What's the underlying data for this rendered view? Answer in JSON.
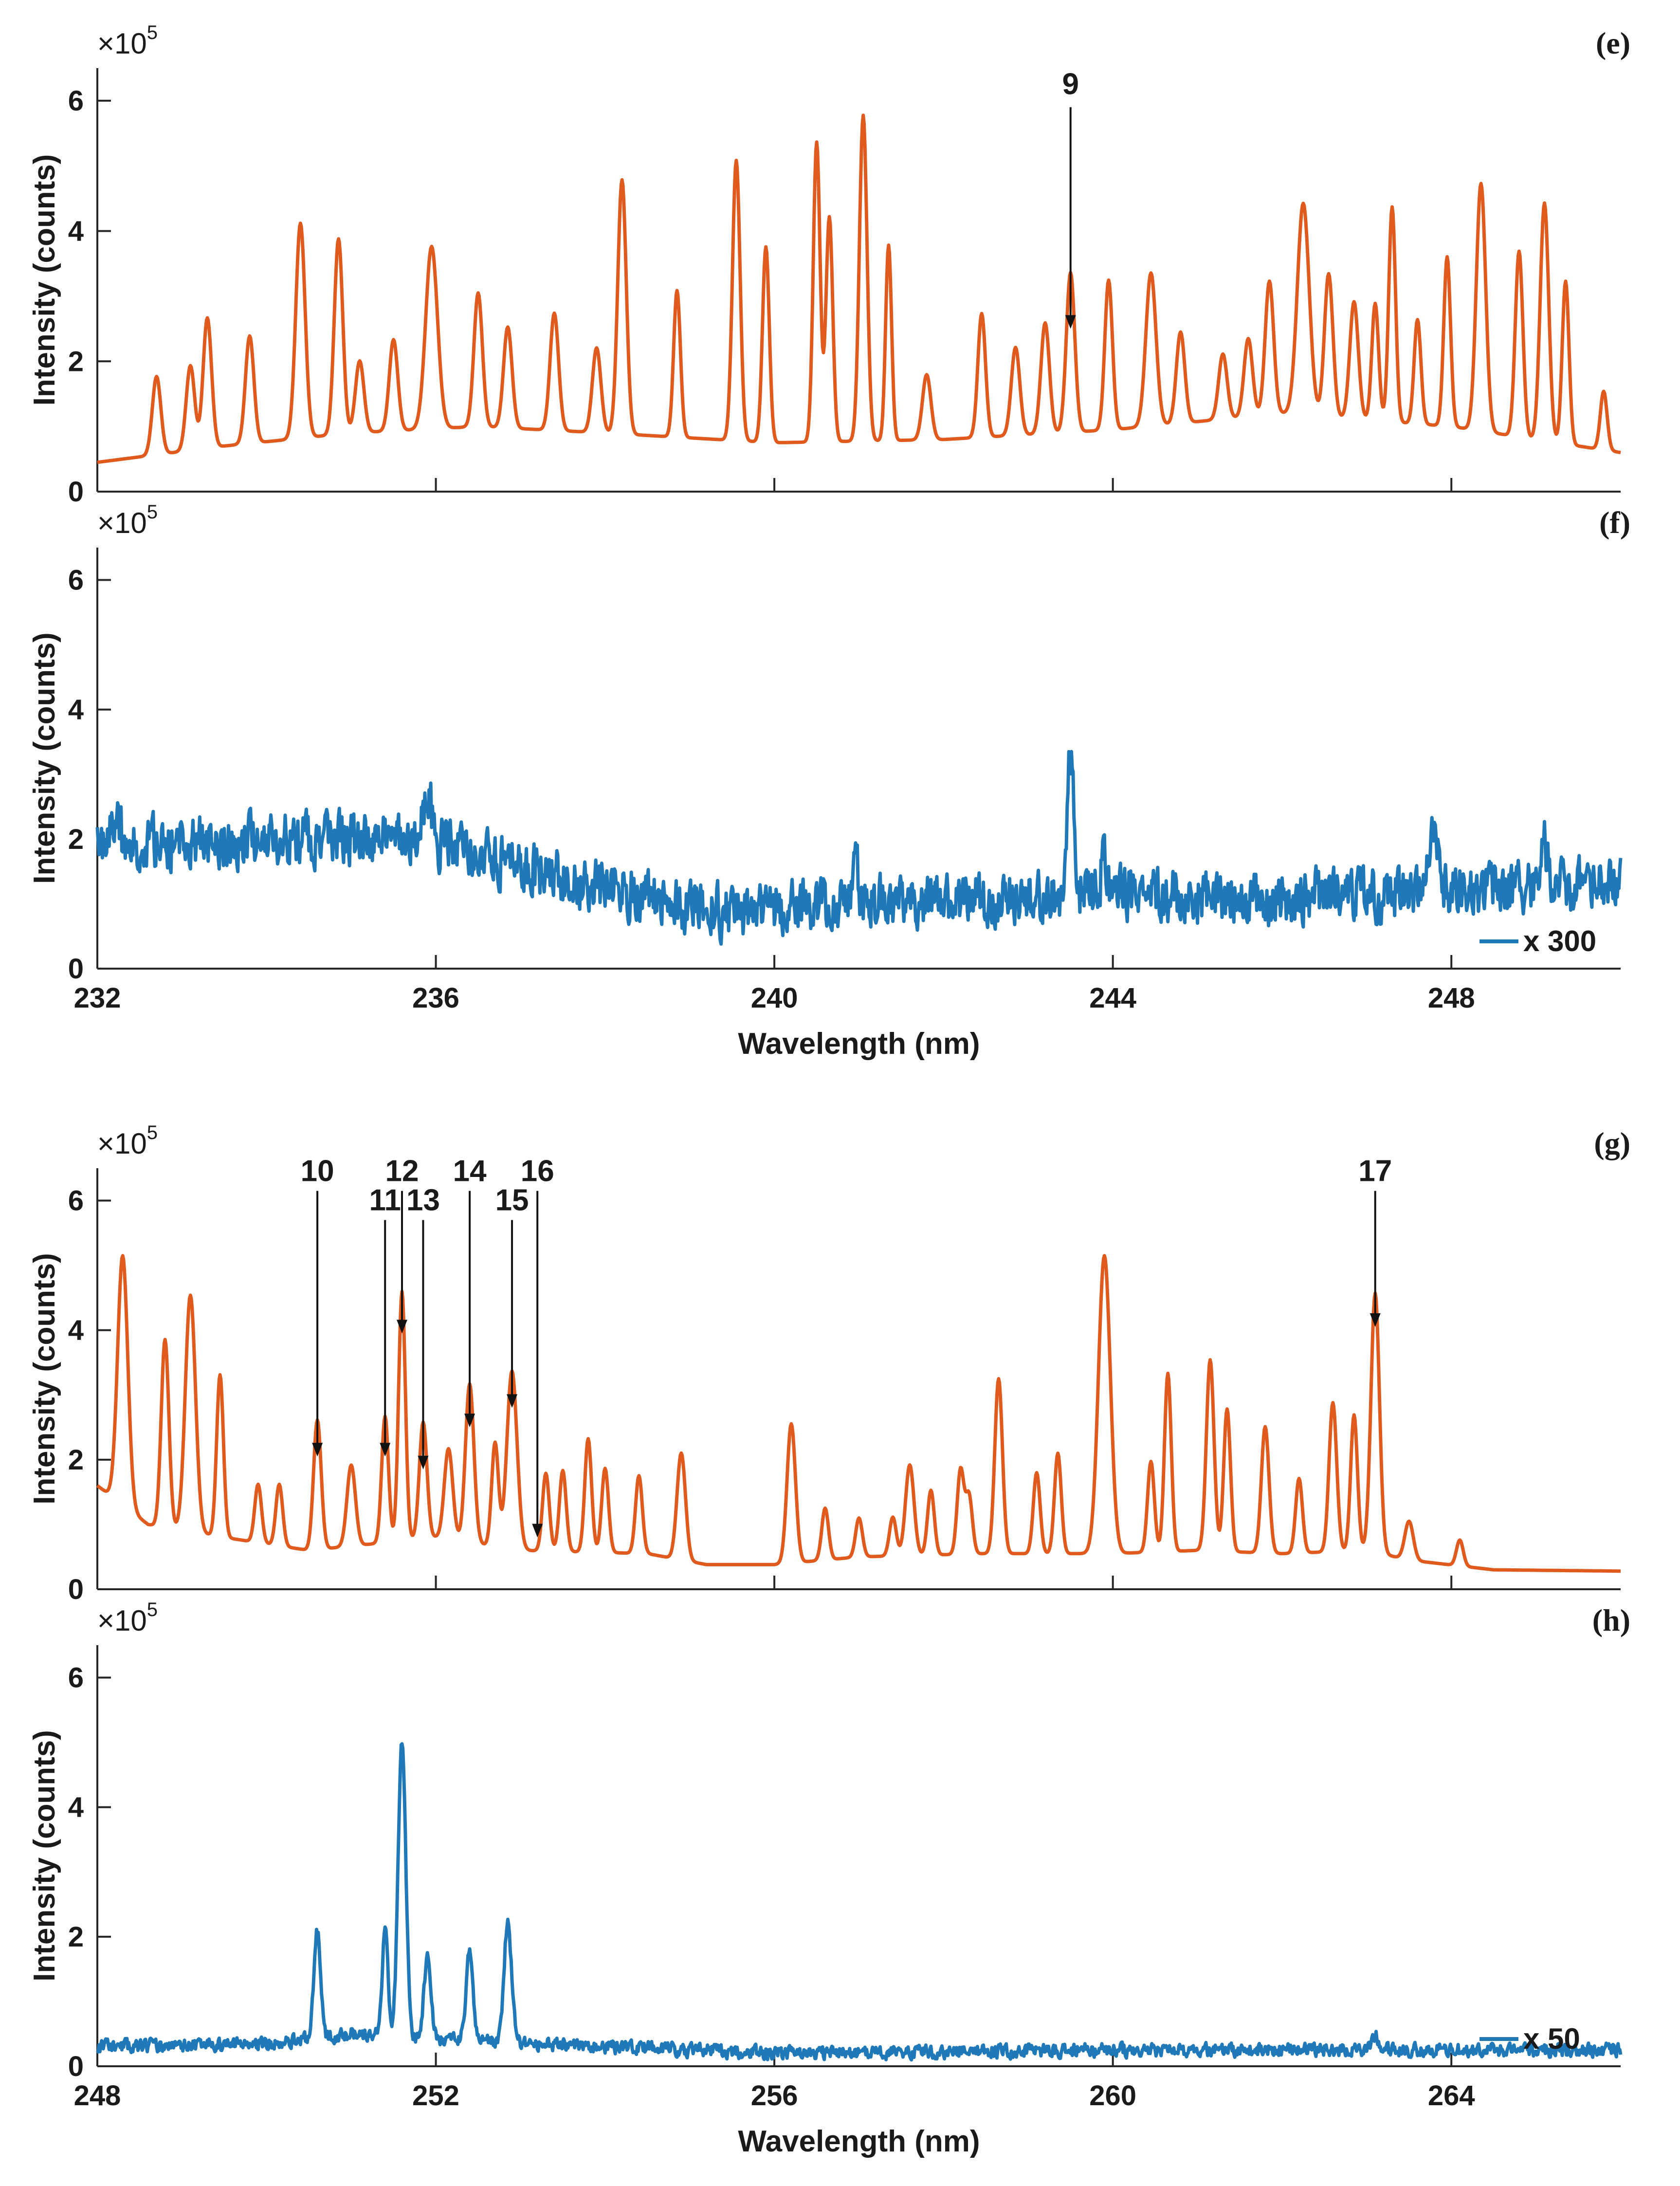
{
  "chart_data": [
    {
      "id": "e",
      "type": "line",
      "panel_label": "(e)",
      "ylabel": "Intensity (counts)",
      "xlabel": "",
      "y_multiplier": "×10",
      "y_exponent": "5",
      "xlim": [
        232,
        250
      ],
      "ylim": [
        0,
        6.5
      ],
      "xticks": [
        232,
        236,
        240,
        244,
        248
      ],
      "xtick_labels": [],
      "yticks": [
        0,
        2,
        4,
        6
      ],
      "ytick_labels": [
        "0",
        "2",
        "4",
        "6"
      ],
      "color": "#e05a1e",
      "baseline": [
        [
          232.0,
          0.45
        ],
        [
          233.5,
          0.7
        ],
        [
          235.0,
          0.9
        ],
        [
          236.5,
          1.0
        ],
        [
          238.0,
          0.9
        ],
        [
          240.0,
          0.75
        ],
        [
          242.0,
          0.8
        ],
        [
          244.0,
          0.95
        ],
        [
          246.0,
          1.2
        ],
        [
          248.0,
          1.0
        ],
        [
          250.0,
          0.6
        ]
      ],
      "peaks": [
        {
          "x": 232.7,
          "y": 1.2,
          "w": 0.05
        },
        {
          "x": 233.1,
          "y": 1.3,
          "w": 0.05
        },
        {
          "x": 233.3,
          "y": 2.0,
          "w": 0.05
        },
        {
          "x": 233.8,
          "y": 1.65,
          "w": 0.05
        },
        {
          "x": 234.4,
          "y": 3.3,
          "w": 0.055
        },
        {
          "x": 234.85,
          "y": 3.0,
          "w": 0.05
        },
        {
          "x": 235.1,
          "y": 1.1,
          "w": 0.05
        },
        {
          "x": 235.5,
          "y": 1.4,
          "w": 0.05
        },
        {
          "x": 235.95,
          "y": 2.8,
          "w": 0.07
        },
        {
          "x": 236.5,
          "y": 2.05,
          "w": 0.05
        },
        {
          "x": 236.85,
          "y": 1.55,
          "w": 0.05
        },
        {
          "x": 237.4,
          "y": 1.8,
          "w": 0.05
        },
        {
          "x": 237.9,
          "y": 1.3,
          "w": 0.05
        },
        {
          "x": 238.2,
          "y": 3.9,
          "w": 0.05
        },
        {
          "x": 238.85,
          "y": 2.25,
          "w": 0.04
        },
        {
          "x": 239.55,
          "y": 4.3,
          "w": 0.045
        },
        {
          "x": 239.9,
          "y": 3.0,
          "w": 0.04
        },
        {
          "x": 240.5,
          "y": 4.6,
          "w": 0.04
        },
        {
          "x": 240.65,
          "y": 3.45,
          "w": 0.04
        },
        {
          "x": 241.05,
          "y": 5.0,
          "w": 0.045
        },
        {
          "x": 241.35,
          "y": 3.0,
          "w": 0.035
        },
        {
          "x": 241.8,
          "y": 1.0,
          "w": 0.05
        },
        {
          "x": 242.45,
          "y": 1.9,
          "w": 0.045
        },
        {
          "x": 242.85,
          "y": 1.35,
          "w": 0.05
        },
        {
          "x": 243.2,
          "y": 1.7,
          "w": 0.05
        },
        {
          "x": 243.5,
          "y": 2.45,
          "w": 0.05
        },
        {
          "x": 243.95,
          "y": 2.3,
          "w": 0.045
        },
        {
          "x": 244.45,
          "y": 2.35,
          "w": 0.06
        },
        {
          "x": 244.8,
          "y": 1.4,
          "w": 0.05
        },
        {
          "x": 245.3,
          "y": 1.0,
          "w": 0.05
        },
        {
          "x": 245.6,
          "y": 1.2,
          "w": 0.05
        },
        {
          "x": 245.85,
          "y": 2.05,
          "w": 0.05
        },
        {
          "x": 246.25,
          "y": 3.25,
          "w": 0.07
        },
        {
          "x": 246.55,
          "y": 2.2,
          "w": 0.05
        },
        {
          "x": 246.85,
          "y": 1.8,
          "w": 0.05
        },
        {
          "x": 247.1,
          "y": 1.8,
          "w": 0.04
        },
        {
          "x": 247.3,
          "y": 3.3,
          "w": 0.04
        },
        {
          "x": 247.6,
          "y": 1.6,
          "w": 0.04
        },
        {
          "x": 247.95,
          "y": 2.6,
          "w": 0.04
        },
        {
          "x": 248.35,
          "y": 3.8,
          "w": 0.055
        },
        {
          "x": 248.8,
          "y": 2.85,
          "w": 0.045
        },
        {
          "x": 249.1,
          "y": 3.65,
          "w": 0.05
        },
        {
          "x": 249.35,
          "y": 2.5,
          "w": 0.04
        },
        {
          "x": 249.8,
          "y": 0.9,
          "w": 0.04
        }
      ],
      "noise": 0,
      "seed": 1,
      "annotations": [
        {
          "label": "9",
          "x": 243.5,
          "y_tip": 2.5,
          "y_tail": 5.9,
          "text_y": 6.1
        }
      ],
      "legend": null
    },
    {
      "id": "f",
      "type": "line",
      "panel_label": "(f)",
      "ylabel": "Intensity (counts)",
      "xlabel": "Wavelength (nm)",
      "y_multiplier": "×10",
      "y_exponent": "5",
      "xlim": [
        232,
        250
      ],
      "ylim": [
        0,
        6.5
      ],
      "xticks": [
        232,
        236,
        240,
        244,
        248
      ],
      "xtick_labels": [
        "232",
        "236",
        "240",
        "244",
        "248"
      ],
      "yticks": [
        0,
        2,
        4,
        6
      ],
      "ytick_labels": [
        "0",
        "2",
        "4",
        "6"
      ],
      "color": "#1f78b8",
      "baseline": [
        [
          232.0,
          1.9
        ],
        [
          234.0,
          2.0
        ],
        [
          235.9,
          2.0
        ],
        [
          236.6,
          1.7
        ],
        [
          237.5,
          1.4
        ],
        [
          238.5,
          1.1
        ],
        [
          239.5,
          0.85
        ],
        [
          240.5,
          1.0
        ],
        [
          242.0,
          1.05
        ],
        [
          243.0,
          1.1
        ],
        [
          244.0,
          1.2
        ],
        [
          245.0,
          1.1
        ],
        [
          246.0,
          1.1
        ],
        [
          248.0,
          1.2
        ],
        [
          250.0,
          1.3
        ]
      ],
      "peaks": [
        {
          "x": 243.5,
          "y": 2.2,
          "w": 0.04
        },
        {
          "x": 235.9,
          "y": 0.7,
          "w": 0.05
        },
        {
          "x": 247.8,
          "y": 1.0,
          "w": 0.05
        },
        {
          "x": 232.2,
          "y": 0.5,
          "w": 0.05
        },
        {
          "x": 240.95,
          "y": 0.6,
          "w": 0.04
        },
        {
          "x": 249.1,
          "y": 0.7,
          "w": 0.04
        },
        {
          "x": 243.9,
          "y": 0.5,
          "w": 0.04
        }
      ],
      "noise": 0.55,
      "seed": 7,
      "annotations": [],
      "legend": {
        "label": "x 300"
      }
    },
    {
      "id": "g",
      "type": "line",
      "panel_label": "(g)",
      "ylabel": "Intensity (counts)",
      "xlabel": "",
      "y_multiplier": "×10",
      "y_exponent": "5",
      "xlim": [
        248,
        266
      ],
      "ylim": [
        0,
        6.5
      ],
      "xticks": [
        248,
        252,
        256,
        260,
        264
      ],
      "xtick_labels": [],
      "yticks": [
        0,
        2,
        4,
        6
      ],
      "ytick_labels": [
        "0",
        "2",
        "4",
        "6"
      ],
      "color": "#e05a1e",
      "baseline": [
        [
          248.0,
          1.6
        ],
        [
          248.6,
          1.0
        ],
        [
          249.5,
          0.8
        ],
        [
          250.5,
          0.6
        ],
        [
          252.0,
          0.8
        ],
        [
          253.0,
          0.6
        ],
        [
          254.5,
          0.55
        ],
        [
          255.2,
          0.38
        ],
        [
          256.0,
          0.38
        ],
        [
          257.0,
          0.5
        ],
        [
          258.5,
          0.55
        ],
        [
          260.0,
          0.55
        ],
        [
          261.0,
          0.6
        ],
        [
          262.0,
          0.55
        ],
        [
          263.0,
          0.6
        ],
        [
          263.5,
          0.45
        ],
        [
          264.5,
          0.3
        ],
        [
          266.0,
          0.28
        ]
      ],
      "peaks": [
        {
          "x": 248.3,
          "y": 3.85,
          "w": 0.06
        },
        {
          "x": 248.8,
          "y": 2.9,
          "w": 0.045
        },
        {
          "x": 249.1,
          "y": 3.65,
          "w": 0.06
        },
        {
          "x": 249.45,
          "y": 2.5,
          "w": 0.04
        },
        {
          "x": 249.9,
          "y": 0.9,
          "w": 0.04
        },
        {
          "x": 250.15,
          "y": 0.95,
          "w": 0.04
        },
        {
          "x": 250.6,
          "y": 2.0,
          "w": 0.045
        },
        {
          "x": 251.0,
          "y": 1.25,
          "w": 0.05
        },
        {
          "x": 251.4,
          "y": 1.95,
          "w": 0.04
        },
        {
          "x": 251.6,
          "y": 3.85,
          "w": 0.04
        },
        {
          "x": 251.85,
          "y": 1.8,
          "w": 0.045
        },
        {
          "x": 252.15,
          "y": 1.4,
          "w": 0.05
        },
        {
          "x": 252.4,
          "y": 2.45,
          "w": 0.05
        },
        {
          "x": 252.7,
          "y": 1.6,
          "w": 0.04
        },
        {
          "x": 252.9,
          "y": 2.75,
          "w": 0.06
        },
        {
          "x": 253.3,
          "y": 1.2,
          "w": 0.04
        },
        {
          "x": 253.5,
          "y": 1.25,
          "w": 0.04
        },
        {
          "x": 253.8,
          "y": 1.75,
          "w": 0.04
        },
        {
          "x": 254.0,
          "y": 1.3,
          "w": 0.04
        },
        {
          "x": 254.4,
          "y": 1.2,
          "w": 0.04
        },
        {
          "x": 254.9,
          "y": 1.65,
          "w": 0.05
        },
        {
          "x": 256.2,
          "y": 2.15,
          "w": 0.05
        },
        {
          "x": 256.6,
          "y": 0.8,
          "w": 0.04
        },
        {
          "x": 257.0,
          "y": 0.6,
          "w": 0.04
        },
        {
          "x": 257.4,
          "y": 0.6,
          "w": 0.04
        },
        {
          "x": 257.6,
          "y": 1.4,
          "w": 0.05
        },
        {
          "x": 257.85,
          "y": 1.0,
          "w": 0.04
        },
        {
          "x": 258.2,
          "y": 1.3,
          "w": 0.04
        },
        {
          "x": 258.3,
          "y": 0.9,
          "w": 0.04
        },
        {
          "x": 258.65,
          "y": 2.7,
          "w": 0.045
        },
        {
          "x": 259.1,
          "y": 1.25,
          "w": 0.04
        },
        {
          "x": 259.35,
          "y": 1.55,
          "w": 0.04
        },
        {
          "x": 259.9,
          "y": 4.6,
          "w": 0.07
        },
        {
          "x": 260.45,
          "y": 1.4,
          "w": 0.04
        },
        {
          "x": 260.65,
          "y": 2.75,
          "w": 0.04
        },
        {
          "x": 261.15,
          "y": 2.95,
          "w": 0.045
        },
        {
          "x": 261.35,
          "y": 2.2,
          "w": 0.04
        },
        {
          "x": 261.8,
          "y": 1.95,
          "w": 0.045
        },
        {
          "x": 262.2,
          "y": 1.15,
          "w": 0.04
        },
        {
          "x": 262.6,
          "y": 2.3,
          "w": 0.045
        },
        {
          "x": 262.85,
          "y": 2.1,
          "w": 0.04
        },
        {
          "x": 263.1,
          "y": 4.0,
          "w": 0.05
        },
        {
          "x": 263.5,
          "y": 0.6,
          "w": 0.05
        },
        {
          "x": 264.1,
          "y": 0.4,
          "w": 0.04
        }
      ],
      "noise": 0,
      "seed": 3,
      "annotations": [
        {
          "label": "10",
          "x": 250.6,
          "y_tip": 2.05,
          "y_tail": 6.15,
          "text_y": 6.3
        },
        {
          "label": "11",
          "x": 251.4,
          "y_tip": 2.05,
          "y_tail": 5.7,
          "text_y": 5.85
        },
        {
          "label": "12",
          "x": 251.6,
          "y_tip": 3.95,
          "y_tail": 6.15,
          "text_y": 6.3
        },
        {
          "label": "13",
          "x": 251.85,
          "y_tip": 1.85,
          "y_tail": 5.7,
          "text_y": 5.85
        },
        {
          "label": "14",
          "x": 252.4,
          "y_tip": 2.5,
          "y_tail": 6.15,
          "text_y": 6.3
        },
        {
          "label": "15",
          "x": 252.9,
          "y_tip": 2.8,
          "y_tail": 5.7,
          "text_y": 5.85
        },
        {
          "label": "16",
          "x": 253.2,
          "y_tip": 0.8,
          "y_tail": 6.15,
          "text_y": 6.3
        },
        {
          "label": "17",
          "x": 263.1,
          "y_tip": 4.05,
          "y_tail": 6.15,
          "text_y": 6.3
        }
      ],
      "legend": null
    },
    {
      "id": "h",
      "type": "line",
      "panel_label": "(h)",
      "ylabel": "Intensity (counts)",
      "xlabel": "Wavelength (nm)",
      "y_multiplier": "×10",
      "y_exponent": "5",
      "xlim": [
        248,
        266
      ],
      "ylim": [
        0,
        6.5
      ],
      "xticks": [
        248,
        252,
        256,
        260,
        264
      ],
      "xtick_labels": [
        "248",
        "252",
        "256",
        "260",
        "264"
      ],
      "yticks": [
        0,
        2,
        4,
        6
      ],
      "ytick_labels": [
        "0",
        "2",
        "4",
        "6"
      ],
      "color": "#1f78b8",
      "baseline": [
        [
          248.0,
          0.3
        ],
        [
          250.0,
          0.35
        ],
        [
          251.0,
          0.5
        ],
        [
          253.0,
          0.35
        ],
        [
          256.0,
          0.2
        ],
        [
          260.0,
          0.25
        ],
        [
          264.0,
          0.25
        ],
        [
          266.0,
          0.25
        ]
      ],
      "peaks": [
        {
          "x": 250.6,
          "y": 1.65,
          "w": 0.04
        },
        {
          "x": 251.4,
          "y": 1.6,
          "w": 0.035
        },
        {
          "x": 251.6,
          "y": 4.55,
          "w": 0.045
        },
        {
          "x": 251.9,
          "y": 1.25,
          "w": 0.04
        },
        {
          "x": 252.4,
          "y": 1.45,
          "w": 0.04
        },
        {
          "x": 252.85,
          "y": 1.85,
          "w": 0.045
        },
        {
          "x": 263.1,
          "y": 0.25,
          "w": 0.04
        }
      ],
      "noise": 0.14,
      "seed": 11,
      "annotations": [],
      "legend": {
        "label": "x 50"
      }
    }
  ]
}
